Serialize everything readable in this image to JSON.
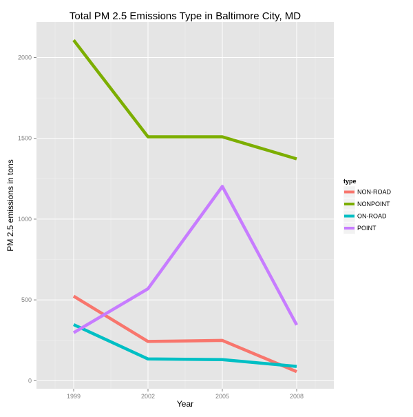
{
  "chart_data": {
    "type": "line",
    "title": "Total PM 2.5 Emissions Type in Baltimore City, MD",
    "xlabel": "Year",
    "ylabel": "PM 2.5 emissions in tons",
    "x": [
      1999,
      2002,
      2005,
      2008
    ],
    "x_tick_labels": [
      "1999",
      "2002",
      "2005",
      "2008"
    ],
    "y_ticks": [
      0,
      500,
      1000,
      1500,
      2000
    ],
    "y_tick_labels": [
      "0",
      "500",
      "1000",
      "1500",
      "2000"
    ],
    "xlim": [
      1997.5,
      2009.5
    ],
    "ylim": [
      -50,
      2220
    ],
    "grid": true,
    "legend": {
      "title": "type",
      "position": "right"
    },
    "series": [
      {
        "name": "NON-ROAD",
        "color": "#F8766D",
        "values": [
          522.94,
          242.85,
          248.93,
          55.82
        ]
      },
      {
        "name": "NONPOINT",
        "color": "#7CAE00",
        "values": [
          2107.63,
          1509.5,
          1509.5,
          1373.21
        ]
      },
      {
        "name": "ON-ROAD",
        "color": "#00BFC4",
        "values": [
          346.82,
          134.31,
          130.43,
          88.28
        ]
      },
      {
        "name": "POINT",
        "color": "#C77CFF",
        "values": [
          296.8,
          569.26,
          1202.49,
          344.98
        ]
      }
    ]
  }
}
